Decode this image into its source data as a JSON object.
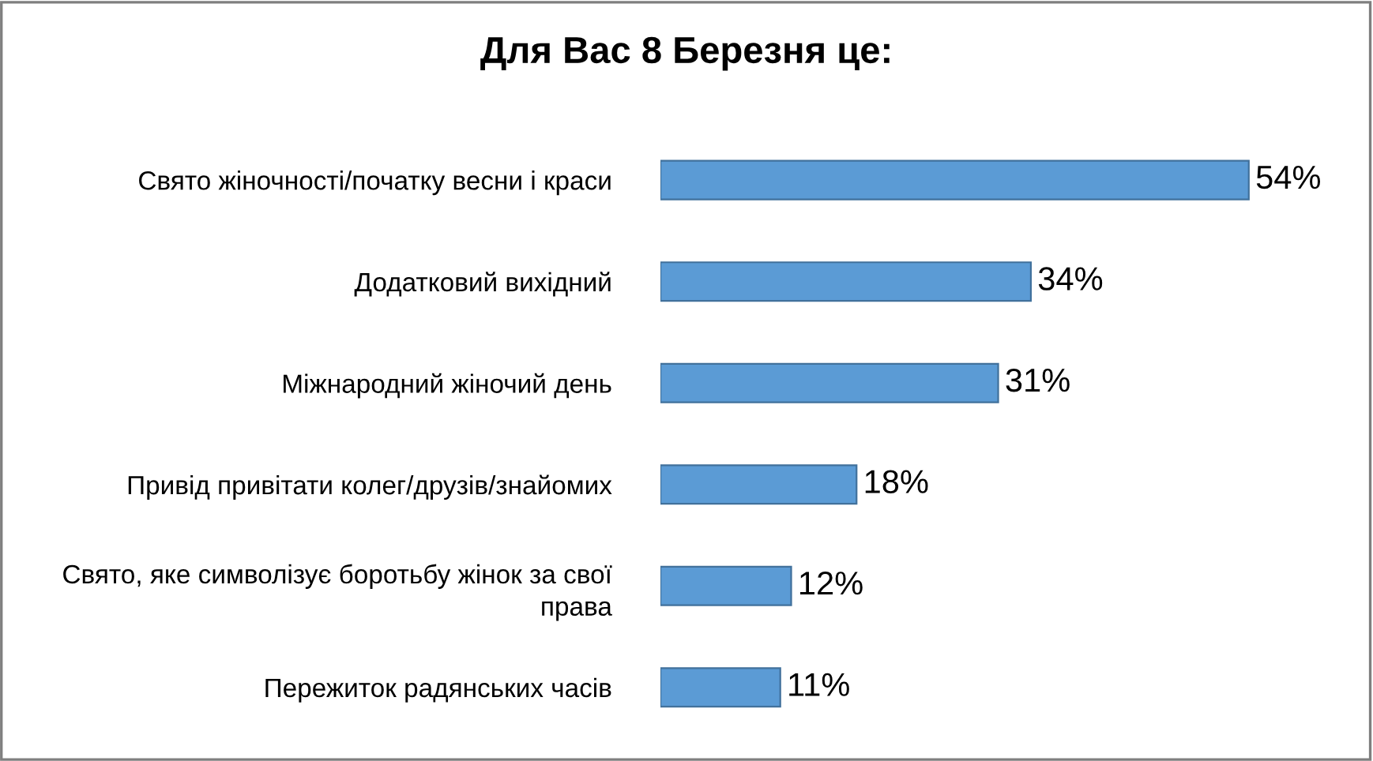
{
  "chart_data": {
    "type": "bar",
    "orientation": "horizontal",
    "title": "Для Вас 8 Березня це:",
    "categories": [
      "Свято жіночності/початку весни і краси",
      "Додатковий вихідний",
      "Міжнародний жіночий день",
      "Привід привітати колег/друзів/знайомих",
      "Свято, яке символізує боротьбу жінок за свої\nправа",
      "Пережиток радянських часів"
    ],
    "values": [
      54,
      34,
      31,
      18,
      12,
      11
    ],
    "value_labels": [
      "54%",
      "34%",
      "31%",
      "18%",
      "12%",
      "11%"
    ],
    "color": "#5b9bd5"
  }
}
